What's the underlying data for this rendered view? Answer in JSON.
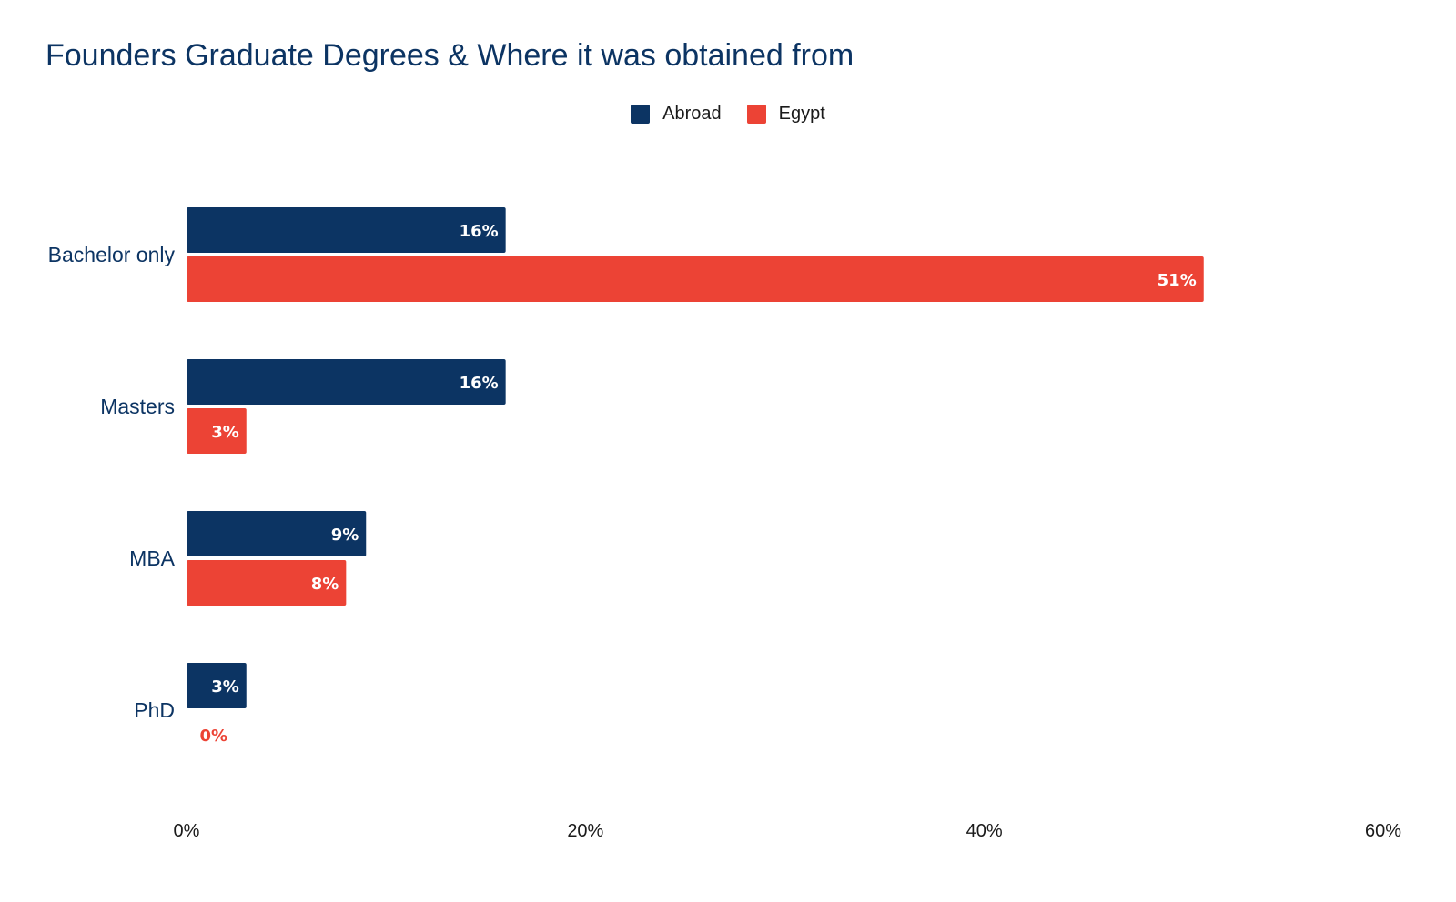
{
  "chart_data": {
    "type": "bar",
    "orientation": "horizontal",
    "title": "Founders Graduate Degrees & Where it was obtained from",
    "categories": [
      "Bachelor only",
      "Masters",
      "MBA",
      "PhD"
    ],
    "series": [
      {
        "name": "Abroad",
        "color": "#0c3463",
        "values": [
          16,
          16,
          9,
          3
        ],
        "labels": [
          "16%",
          "16%",
          "9%",
          "3%"
        ]
      },
      {
        "name": "Egypt",
        "color": "#ec4335",
        "values": [
          51,
          3,
          8,
          0
        ],
        "labels": [
          "51%",
          "3%",
          "8%",
          "0%"
        ]
      }
    ],
    "xlim": [
      0,
      60
    ],
    "xticks": [
      0,
      20,
      40,
      60
    ],
    "xtick_labels": [
      "0%",
      "20%",
      "40%",
      "60%"
    ],
    "legend_position": "top-center",
    "grid": false
  }
}
